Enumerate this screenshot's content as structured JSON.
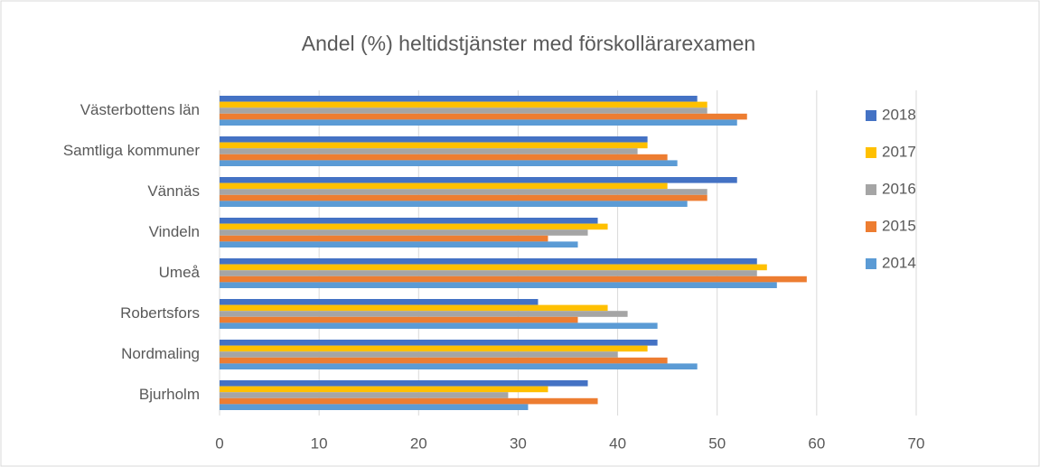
{
  "chart_data": {
    "type": "barh",
    "title": "Andel (%) heltidstjänster med förskollärarexamen",
    "categories": [
      "Västerbottens län",
      "Samtliga kommuner",
      "Vännäs",
      "Vindeln",
      "Umeå",
      "Robertsfors",
      "Nordmaling",
      "Bjurholm"
    ],
    "series": [
      {
        "name": "2018",
        "color": "#4472c4",
        "values": [
          48,
          43,
          52,
          38,
          54,
          32,
          44,
          37
        ]
      },
      {
        "name": "2017",
        "color": "#ffc000",
        "values": [
          49,
          43,
          45,
          39,
          55,
          39,
          43,
          33
        ]
      },
      {
        "name": "2016",
        "color": "#a5a5a5",
        "values": [
          49,
          42,
          49,
          37,
          54,
          41,
          40,
          29
        ]
      },
      {
        "name": "2015",
        "color": "#ed7d31",
        "values": [
          53,
          45,
          49,
          33,
          59,
          36,
          45,
          38
        ]
      },
      {
        "name": "2014",
        "color": "#5b9bd5",
        "values": [
          52,
          46,
          47,
          36,
          56,
          44,
          48,
          31
        ]
      }
    ],
    "xlim": [
      0,
      70
    ],
    "xticks": [
      0,
      10,
      20,
      30,
      40,
      50,
      60,
      70
    ],
    "grid": true,
    "legend": "right"
  }
}
